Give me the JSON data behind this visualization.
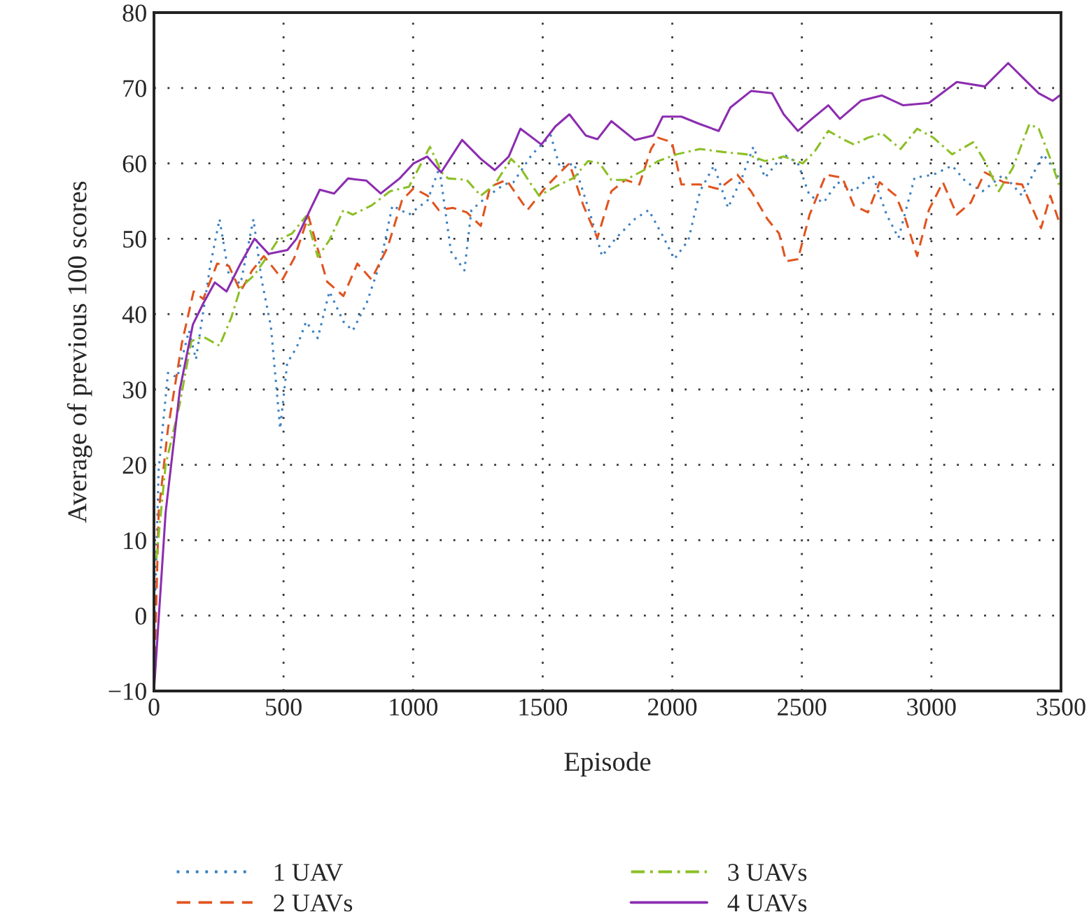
{
  "chart_data": {
    "type": "line",
    "xlabel": "Episode",
    "ylabel": "Average of previous 100 scores",
    "xlim": [
      0,
      3500
    ],
    "xticks": [
      0,
      500,
      1000,
      1500,
      2000,
      2500,
      3000,
      3500
    ],
    "ylim": [
      -10,
      80
    ],
    "yticks": [
      {
        "value": -10,
        "label": "−10"
      },
      0,
      10,
      20,
      30,
      40,
      50,
      60,
      70,
      80
    ],
    "grid": true,
    "legend": "bottom",
    "marker": "none",
    "series": [
      {
        "name": "1 UAV",
        "color": "#3a7fc1",
        "line_style": "dotted",
        "x": [
          0,
          18,
          54,
          90,
          135,
          162,
          217,
          253,
          289,
          334,
          384,
          415,
          451,
          487,
          514,
          551,
          587,
          632,
          677,
          731,
          767,
          821,
          875,
          920,
          984,
          1056,
          1101,
          1146,
          1198,
          1225,
          1279,
          1351,
          1387,
          1459,
          1531,
          1567,
          1621,
          1684,
          1729,
          1783,
          1855,
          1909,
          1963,
          2008,
          2062,
          2107,
          2161,
          2215,
          2269,
          2313,
          2358,
          2430,
          2485,
          2530,
          2584,
          2638,
          2701,
          2773,
          2827,
          2873,
          2935,
          3008,
          3080,
          3134,
          3197,
          3278,
          3350,
          3431,
          3477,
          3498
        ],
        "values": [
          -3.6,
          19.3,
          32.2,
          31.6,
          37.8,
          34,
          46.4,
          52.6,
          45.2,
          44,
          52.6,
          44.6,
          38.4,
          24.8,
          33.5,
          35.6,
          39,
          36.8,
          43,
          39,
          37.8,
          41.5,
          47,
          54.4,
          53.2,
          55.1,
          59.4,
          48.3,
          45.8,
          53.8,
          55.4,
          57.2,
          57.5,
          61.2,
          63.7,
          59.4,
          60,
          53.2,
          47.7,
          50.1,
          52.6,
          53.8,
          50.4,
          47.3,
          49.8,
          56.3,
          59.7,
          54.1,
          58.1,
          62.2,
          58.1,
          61.2,
          60,
          55.7,
          54.8,
          57.5,
          56.3,
          58.5,
          53.2,
          50.1,
          58.1,
          58.5,
          59.7,
          57.5,
          56.3,
          58.5,
          55.7,
          61.2,
          59.1,
          57.5
        ]
      },
      {
        "name": "2 UAVs",
        "color": "#e0541f",
        "line_style": "dashed",
        "x": [
          0,
          18,
          54,
          108,
          153,
          190,
          244,
          289,
          334,
          379,
          424,
          496,
          541,
          596,
          668,
          731,
          785,
          839,
          902,
          957,
          1002,
          1056,
          1099,
          1153,
          1207,
          1261,
          1297,
          1360,
          1441,
          1513,
          1567,
          1603,
          1657,
          1711,
          1765,
          1819,
          1873,
          1918,
          1945,
          1999,
          2035,
          2107,
          2179,
          2251,
          2304,
          2367,
          2412,
          2439,
          2485,
          2530,
          2593,
          2656,
          2701,
          2755,
          2800,
          2863,
          2900,
          2945,
          2990,
          3044,
          3098,
          3152,
          3206,
          3278,
          3350,
          3423,
          3459,
          3495
        ],
        "values": [
          -10,
          13.7,
          24.8,
          36.2,
          43,
          42,
          46.7,
          46.4,
          43,
          45.8,
          47.7,
          44.6,
          47.4,
          53,
          44.3,
          42.4,
          46.7,
          44.6,
          48.9,
          55.1,
          56.7,
          55.7,
          53.8,
          54.1,
          53.5,
          51.7,
          56.9,
          57.8,
          53.8,
          56.9,
          58.8,
          60,
          54.4,
          50.1,
          56.3,
          57.8,
          57.2,
          61.9,
          63.4,
          62.8,
          57.2,
          57.2,
          56.6,
          58.5,
          56.3,
          52.6,
          50.7,
          47,
          47.3,
          53.2,
          58.5,
          58.1,
          54.4,
          53.5,
          57.5,
          55.7,
          52.6,
          47.7,
          53.8,
          57.5,
          53.2,
          54.8,
          58.8,
          57.5,
          57.2,
          51.4,
          55.7,
          52
        ]
      },
      {
        "name": "3 UAVs",
        "color": "#8cbf26",
        "line_style": "dashdot",
        "x": [
          9,
          45,
          99,
          144,
          190,
          253,
          298,
          334,
          388,
          424,
          478,
          533,
          587,
          632,
          677,
          731,
          767,
          839,
          911,
          984,
          1065,
          1110,
          1135,
          1207,
          1261,
          1315,
          1378,
          1414,
          1450,
          1486,
          1549,
          1621,
          1675,
          1720,
          1765,
          1819,
          1891,
          1945,
          2017,
          2107,
          2197,
          2286,
          2358,
          2430,
          2503,
          2548,
          2602,
          2665,
          2701,
          2755,
          2809,
          2881,
          2945,
          3008,
          3080,
          3161,
          3206,
          3260,
          3314,
          3378,
          3414,
          3459,
          3495
        ],
        "values": [
          7.5,
          20,
          28,
          36.4,
          37,
          35.8,
          39.5,
          43.5,
          45.2,
          47,
          49.8,
          50.7,
          53,
          47.6,
          49.8,
          53.8,
          53.2,
          54.4,
          56.3,
          56.9,
          62.2,
          58.8,
          58,
          57.8,
          55.7,
          57.2,
          60.6,
          59.4,
          57.5,
          55.7,
          56.9,
          58.1,
          60.3,
          60,
          57.8,
          57.8,
          59.1,
          60.3,
          61.2,
          61.9,
          61.5,
          61.2,
          60.3,
          60.9,
          60,
          61.5,
          64.3,
          63.1,
          62.5,
          63.4,
          64,
          61.9,
          64.6,
          63.4,
          61.2,
          62.8,
          60.3,
          56.3,
          59.4,
          65.2,
          64.6,
          60.6,
          56.9
        ]
      },
      {
        "name": "4 UAVs",
        "color": "#8c2db0",
        "line_style": "solid",
        "x": [
          0,
          45,
          100,
          150,
          190,
          235,
          280,
          334,
          388,
          442,
          515,
          550,
          605,
          640,
          695,
          749,
          820,
          875,
          948,
          1002,
          1054,
          1108,
          1189,
          1261,
          1315,
          1369,
          1414,
          1495,
          1549,
          1603,
          1666,
          1711,
          1765,
          1855,
          1927,
          1963,
          2035,
          2107,
          2179,
          2224,
          2304,
          2385,
          2430,
          2485,
          2539,
          2602,
          2647,
          2728,
          2809,
          2891,
          2990,
          3098,
          3206,
          3296,
          3369,
          3414,
          3468,
          3495
        ],
        "values": [
          -10,
          13.7,
          30,
          38.6,
          41.4,
          44.2,
          43,
          46.7,
          50,
          48,
          48.5,
          50,
          54,
          56.5,
          56,
          58,
          57.7,
          56,
          58,
          60,
          60.9,
          58.8,
          63.1,
          60.6,
          59.1,
          60.9,
          64.6,
          62.5,
          64.9,
          66.5,
          63.7,
          63.2,
          65.6,
          63.1,
          63.7,
          66.2,
          66.2,
          65.2,
          64.3,
          67.4,
          69.6,
          69.3,
          66.5,
          64.3,
          65.9,
          67.7,
          65.9,
          68.3,
          69,
          67.7,
          68,
          70.8,
          70.2,
          73.3,
          70.8,
          69.3,
          68.3,
          69
        ]
      }
    ]
  }
}
